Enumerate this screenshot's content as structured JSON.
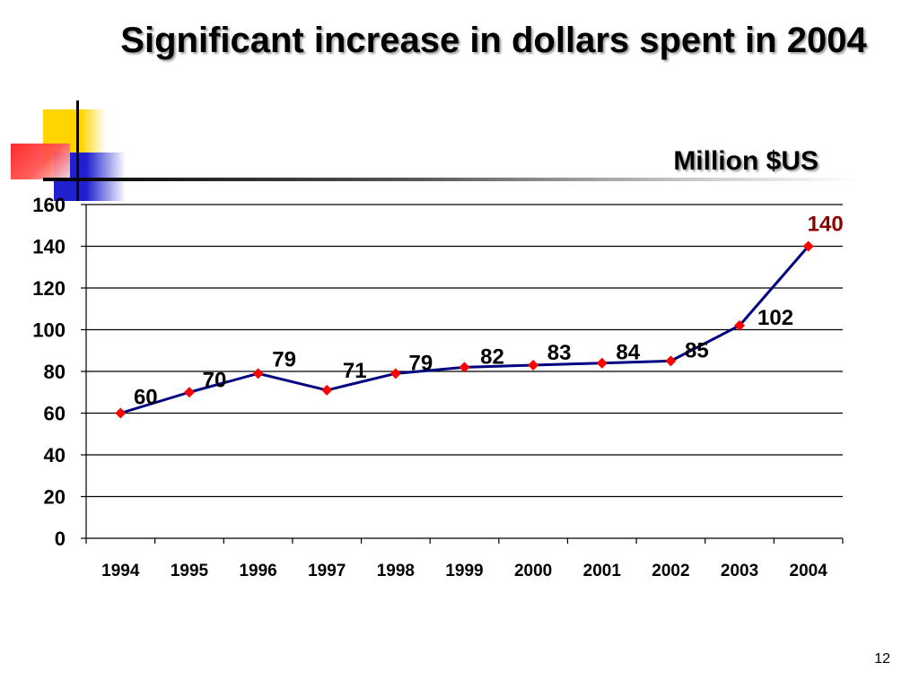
{
  "title": "Significant increase in dollars spent in 2004",
  "unit_label": "Million $US",
  "page_number": "12",
  "colors": {
    "line": "#000080",
    "marker": "#ff0000",
    "highlight_label": "#8b0000",
    "grid": "#000000"
  },
  "chart_data": {
    "type": "line",
    "categories": [
      "1994",
      "1995",
      "1996",
      "1997",
      "1998",
      "1999",
      "2000",
      "2001",
      "2002",
      "2003",
      "2004"
    ],
    "series": [
      {
        "values": [
          60,
          70,
          79,
          71,
          79,
          82,
          83,
          84,
          85,
          102,
          140
        ]
      }
    ],
    "data_labels": [
      "60",
      "70",
      "79",
      "71",
      "79",
      "82",
      "83",
      "84",
      "85",
      "102",
      "140"
    ],
    "highlighted_point": "2004",
    "ylim": [
      0,
      160
    ],
    "y_ticks": [
      0,
      20,
      40,
      60,
      80,
      100,
      120,
      140,
      160
    ],
    "grid": "horizontal",
    "legend": "none",
    "marker": "diamond"
  }
}
